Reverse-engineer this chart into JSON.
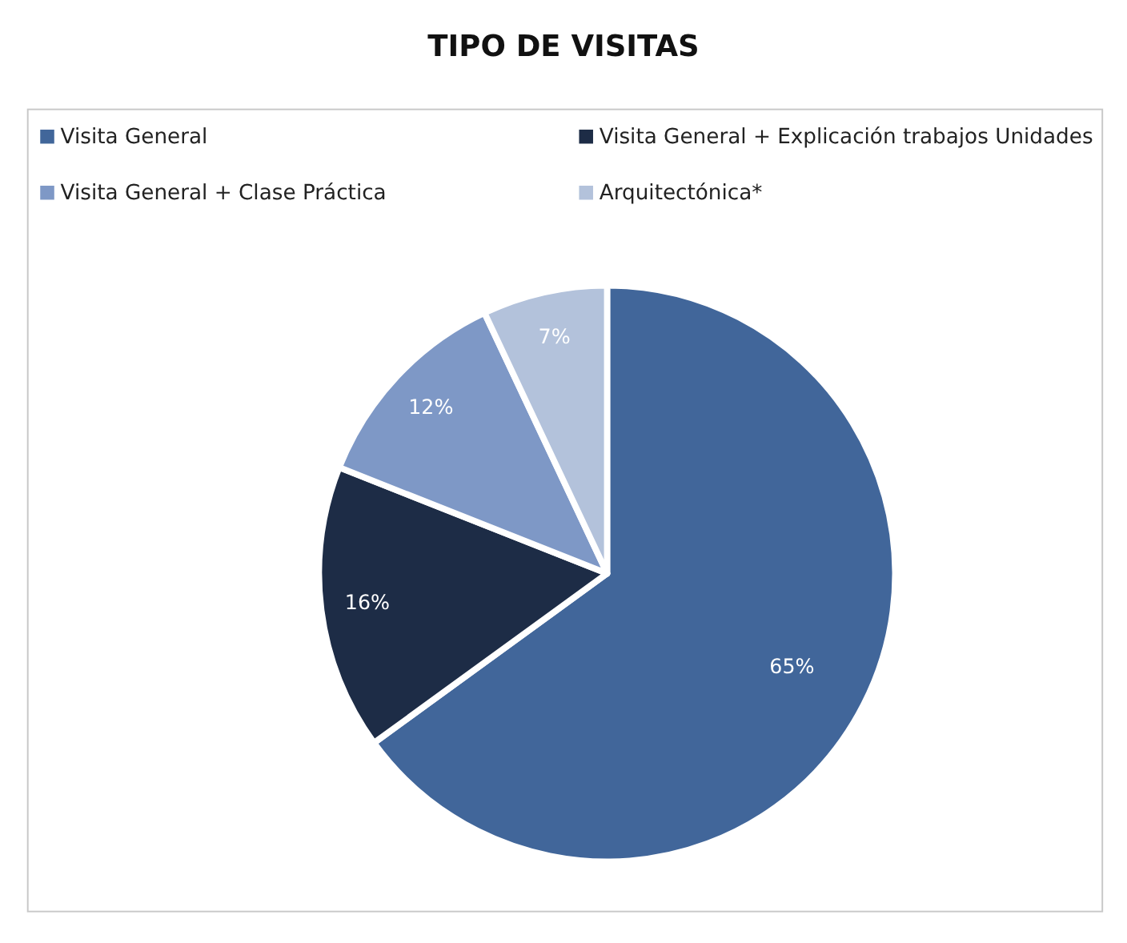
{
  "chart_data": {
    "type": "pie",
    "title": "TIPO DE VISITAS",
    "categories": [
      "Visita General",
      "Visita General + Explicación trabajos Unidades",
      "Visita General + Clase Práctica",
      "Arquitectónica*"
    ],
    "values": [
      65,
      16,
      12,
      7
    ],
    "colors": [
      "#41669a",
      "#1d2c46",
      "#7e98c6",
      "#b3c2db"
    ],
    "value_labels": [
      "65%",
      "16%",
      "12%",
      "7%"
    ],
    "legend": "top"
  }
}
